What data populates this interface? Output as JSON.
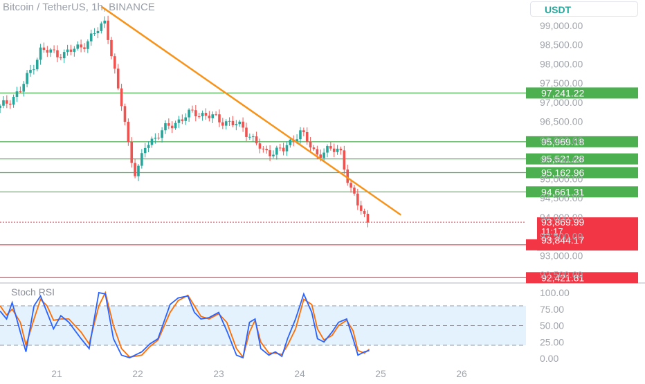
{
  "header": {
    "title": "Bitcoin / TetherUS, 1h, BINANCE",
    "currency": "USDT"
  },
  "colors": {
    "up": "#26a69a",
    "down": "#ef5350",
    "level_up": "#4caf50",
    "level_down": "#f23645",
    "trendline": "#f7931a",
    "stoch_k": "#2962ff",
    "stoch_d": "#ff6d00",
    "stoch_band": "#e3f2fd"
  },
  "chart_data": [
    {
      "type": "candlestick",
      "title": "Bitcoin / TetherUS, 1h, BINANCE",
      "x_ticks": [
        "21",
        "22",
        "23",
        "24",
        "25",
        "26"
      ],
      "y_ticks": [
        "99,000.00",
        "98,500.00",
        "98,000.00",
        "97,500.00",
        "97,000.00",
        "96,500.00",
        "96,000.00",
        "95,500.00",
        "95,000.00",
        "94,500.00",
        "94,000.00",
        "93,500.00",
        "93,000.00",
        "92,500.00"
      ],
      "ylim": [
        92250,
        99400
      ],
      "levels_support_resistance": [
        {
          "value": 97241.22,
          "label": "97,241.22",
          "kind": "green"
        },
        {
          "value": 95969.18,
          "label": "95,969.18",
          "kind": "green"
        },
        {
          "value": 95521.28,
          "label": "95,521.28",
          "kind": "green"
        },
        {
          "value": 95162.96,
          "label": "95,162.96",
          "kind": "green"
        },
        {
          "value": 94661.31,
          "label": "94,661.31",
          "kind": "green"
        },
        {
          "value": 93279.59,
          "label": "93,279.59",
          "kind": "red"
        },
        {
          "value": 92421.81,
          "label": "92,421.81",
          "kind": "red"
        }
      ],
      "price_labels": {
        "last_price": "93,869.99",
        "countdown": "11:17",
        "prev_close": "93,844.17"
      },
      "trendline": {
        "from": {
          "day": 21.55,
          "price": 99500
        },
        "to": {
          "day": 25.25,
          "price": 94060
        }
      },
      "price_path": [
        {
          "day": 20.3,
          "price": 96850
        },
        {
          "day": 20.55,
          "price": 97300
        },
        {
          "day": 20.8,
          "price": 98350
        },
        {
          "day": 21.1,
          "price": 98250
        },
        {
          "day": 21.4,
          "price": 98600
        },
        {
          "day": 21.6,
          "price": 99150
        },
        {
          "day": 21.75,
          "price": 97350
        },
        {
          "day": 21.82,
          "price": 96800
        },
        {
          "day": 21.9,
          "price": 95700
        },
        {
          "day": 21.98,
          "price": 95050
        },
        {
          "day": 22.1,
          "price": 95900
        },
        {
          "day": 22.4,
          "price": 96400
        },
        {
          "day": 22.7,
          "price": 96750
        },
        {
          "day": 23.0,
          "price": 96550
        },
        {
          "day": 23.3,
          "price": 96350
        },
        {
          "day": 23.55,
          "price": 95700
        },
        {
          "day": 23.8,
          "price": 95750
        },
        {
          "day": 24.0,
          "price": 96250
        },
        {
          "day": 24.2,
          "price": 95650
        },
        {
          "day": 24.5,
          "price": 95800
        },
        {
          "day": 24.62,
          "price": 94700
        },
        {
          "day": 24.75,
          "price": 94250
        },
        {
          "day": 24.85,
          "price": 93870
        }
      ]
    },
    {
      "type": "line",
      "title": "Stoch RSI",
      "y_ticks": [
        "100.00",
        "75.00",
        "50.00",
        "25.00",
        "0.00"
      ],
      "ylim": [
        0,
        100
      ],
      "bands": [
        80,
        50,
        20
      ],
      "series": [
        {
          "color_key": "stoch_k",
          "points": [
            {
              "day": 20.3,
              "value": 72
            },
            {
              "day": 20.38,
              "value": 60
            },
            {
              "day": 20.45,
              "value": 85
            },
            {
              "day": 20.55,
              "value": 40
            },
            {
              "day": 20.62,
              "value": 10
            },
            {
              "day": 20.72,
              "value": 80
            },
            {
              "day": 20.8,
              "value": 95
            },
            {
              "day": 20.88,
              "value": 70
            },
            {
              "day": 20.96,
              "value": 45
            },
            {
              "day": 21.05,
              "value": 65
            },
            {
              "day": 21.15,
              "value": 55
            },
            {
              "day": 21.3,
              "value": 30
            },
            {
              "day": 21.4,
              "value": 15
            },
            {
              "day": 21.52,
              "value": 100
            },
            {
              "day": 21.6,
              "value": 98
            },
            {
              "day": 21.7,
              "value": 30
            },
            {
              "day": 21.8,
              "value": 5
            },
            {
              "day": 21.9,
              "value": 1
            },
            {
              "day": 22.05,
              "value": 10
            },
            {
              "day": 22.15,
              "value": 22
            },
            {
              "day": 22.25,
              "value": 30
            },
            {
              "day": 22.4,
              "value": 82
            },
            {
              "day": 22.5,
              "value": 92
            },
            {
              "day": 22.62,
              "value": 95
            },
            {
              "day": 22.7,
              "value": 70
            },
            {
              "day": 22.78,
              "value": 60
            },
            {
              "day": 22.88,
              "value": 62
            },
            {
              "day": 23.0,
              "value": 70
            },
            {
              "day": 23.1,
              "value": 42
            },
            {
              "day": 23.22,
              "value": 5
            },
            {
              "day": 23.3,
              "value": 1
            },
            {
              "day": 23.38,
              "value": 55
            },
            {
              "day": 23.45,
              "value": 60
            },
            {
              "day": 23.52,
              "value": 15
            },
            {
              "day": 23.62,
              "value": 5
            },
            {
              "day": 23.7,
              "value": 10
            },
            {
              "day": 23.78,
              "value": 3
            },
            {
              "day": 23.85,
              "value": 30
            },
            {
              "day": 23.95,
              "value": 60
            },
            {
              "day": 24.05,
              "value": 98
            },
            {
              "day": 24.15,
              "value": 70
            },
            {
              "day": 24.22,
              "value": 30
            },
            {
              "day": 24.3,
              "value": 25
            },
            {
              "day": 24.4,
              "value": 40
            },
            {
              "day": 24.48,
              "value": 55
            },
            {
              "day": 24.58,
              "value": 60
            },
            {
              "day": 24.66,
              "value": 30
            },
            {
              "day": 24.72,
              "value": 5
            },
            {
              "day": 24.8,
              "value": 10
            },
            {
              "day": 24.86,
              "value": 12
            }
          ]
        },
        {
          "color_key": "stoch_d",
          "points": [
            {
              "day": 20.3,
              "value": 80
            },
            {
              "day": 20.38,
              "value": 66
            },
            {
              "day": 20.45,
              "value": 75
            },
            {
              "day": 20.55,
              "value": 55
            },
            {
              "day": 20.62,
              "value": 20
            },
            {
              "day": 20.72,
              "value": 60
            },
            {
              "day": 20.8,
              "value": 90
            },
            {
              "day": 20.88,
              "value": 80
            },
            {
              "day": 20.96,
              "value": 58
            },
            {
              "day": 21.05,
              "value": 60
            },
            {
              "day": 21.15,
              "value": 60
            },
            {
              "day": 21.3,
              "value": 40
            },
            {
              "day": 21.4,
              "value": 22
            },
            {
              "day": 21.52,
              "value": 80
            },
            {
              "day": 21.6,
              "value": 100
            },
            {
              "day": 21.7,
              "value": 50
            },
            {
              "day": 21.8,
              "value": 15
            },
            {
              "day": 21.9,
              "value": 2
            },
            {
              "day": 22.05,
              "value": 5
            },
            {
              "day": 22.15,
              "value": 18
            },
            {
              "day": 22.25,
              "value": 28
            },
            {
              "day": 22.4,
              "value": 70
            },
            {
              "day": 22.5,
              "value": 88
            },
            {
              "day": 22.62,
              "value": 96
            },
            {
              "day": 22.7,
              "value": 80
            },
            {
              "day": 22.78,
              "value": 64
            },
            {
              "day": 22.88,
              "value": 60
            },
            {
              "day": 23.0,
              "value": 68
            },
            {
              "day": 23.1,
              "value": 55
            },
            {
              "day": 23.22,
              "value": 15
            },
            {
              "day": 23.3,
              "value": 2
            },
            {
              "day": 23.38,
              "value": 40
            },
            {
              "day": 23.45,
              "value": 58
            },
            {
              "day": 23.52,
              "value": 25
            },
            {
              "day": 23.62,
              "value": 8
            },
            {
              "day": 23.7,
              "value": 8
            },
            {
              "day": 23.78,
              "value": 6
            },
            {
              "day": 23.85,
              "value": 20
            },
            {
              "day": 23.95,
              "value": 45
            },
            {
              "day": 24.05,
              "value": 90
            },
            {
              "day": 24.15,
              "value": 82
            },
            {
              "day": 24.22,
              "value": 45
            },
            {
              "day": 24.3,
              "value": 28
            },
            {
              "day": 24.4,
              "value": 35
            },
            {
              "day": 24.48,
              "value": 50
            },
            {
              "day": 24.58,
              "value": 58
            },
            {
              "day": 24.66,
              "value": 42
            },
            {
              "day": 24.72,
              "value": 12
            },
            {
              "day": 24.8,
              "value": 8
            },
            {
              "day": 24.86,
              "value": 14
            }
          ]
        }
      ]
    }
  ]
}
